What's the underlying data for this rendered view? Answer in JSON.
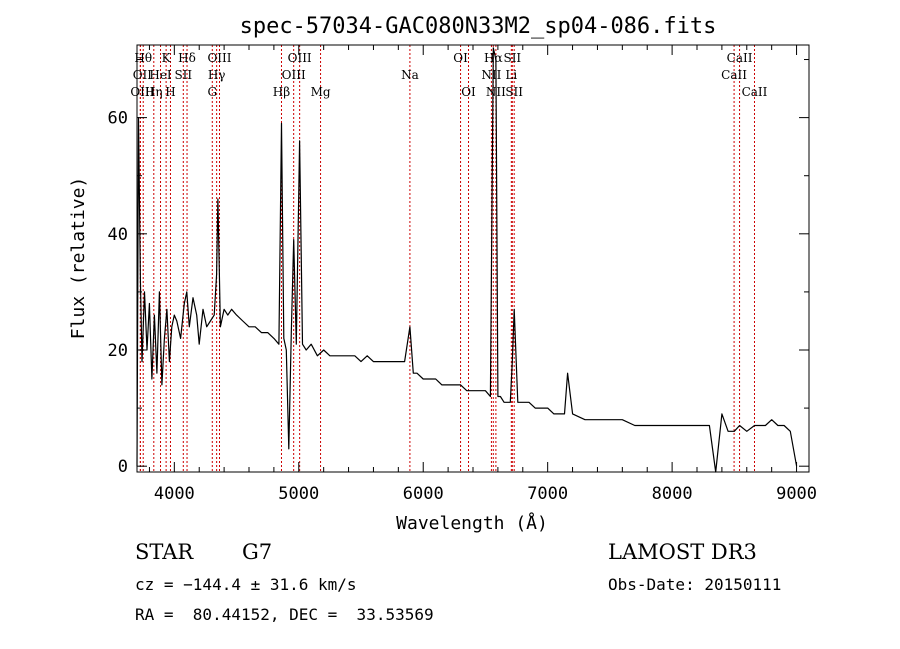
{
  "chart_data": {
    "type": "line",
    "title": "spec-57034-GAC080N33M2_sp04-086.fits",
    "xlabel": "Wavelength (Å)",
    "ylabel": "Flux (relative)",
    "xlim": [
      3700,
      9100
    ],
    "ylim": [
      -1,
      72.5
    ],
    "x_ticks": [
      4000,
      5000,
      6000,
      7000,
      8000,
      9000
    ],
    "y_ticks": [
      0,
      20,
      40,
      60
    ],
    "grid": false,
    "series": [
      {
        "x": [
          3700,
          3712,
          3727,
          3740,
          3760,
          3780,
          3800,
          3820,
          3840,
          3860,
          3880,
          3900,
          3920,
          3940,
          3960,
          3980,
          4000,
          4020,
          4050,
          4080,
          4100,
          4120,
          4150,
          4180,
          4200,
          4230,
          4260,
          4290,
          4320,
          4340,
          4350,
          4370,
          4400,
          4430,
          4460,
          4500,
          4550,
          4600,
          4650,
          4700,
          4750,
          4800,
          4840,
          4861,
          4880,
          4900,
          4920,
          4940,
          4959,
          4980,
          5007,
          5030,
          5060,
          5100,
          5150,
          5200,
          5250,
          5300,
          5350,
          5400,
          5450,
          5500,
          5550,
          5600,
          5650,
          5700,
          5750,
          5800,
          5850,
          5893,
          5920,
          5950,
          6000,
          6050,
          6100,
          6150,
          6200,
          6250,
          6300,
          6350,
          6400,
          6450,
          6500,
          6540,
          6563,
          6584,
          6600,
          6620,
          6650,
          6680,
          6700,
          6716,
          6731,
          6760,
          6800,
          6850,
          6900,
          6950,
          7000,
          7050,
          7100,
          7135,
          7160,
          7200,
          7300,
          7400,
          7500,
          7600,
          7700,
          7800,
          7900,
          8000,
          8100,
          8200,
          8300,
          8350,
          8400,
          8450,
          8500,
          8542,
          8600,
          8662,
          8700,
          8750,
          8800,
          8850,
          8900,
          8950,
          9000
        ],
        "y": [
          0,
          60,
          32,
          18,
          30,
          20,
          28,
          15,
          26,
          16,
          30,
          14,
          22,
          27,
          18,
          24,
          26,
          25,
          22,
          28,
          30,
          24,
          29,
          26,
          21,
          27,
          24,
          25,
          26,
          33,
          46,
          24,
          27,
          26,
          27,
          26,
          25,
          24,
          24,
          23,
          23,
          22,
          21,
          59,
          22,
          20,
          3,
          23,
          39,
          21,
          56,
          21,
          20,
          21,
          19,
          20,
          19,
          19,
          19,
          19,
          19,
          18,
          19,
          18,
          18,
          18,
          18,
          18,
          18,
          24,
          16,
          16,
          15,
          15,
          15,
          14,
          14,
          14,
          14,
          13,
          13,
          13,
          13,
          12,
          72,
          70,
          12,
          12,
          11,
          11,
          11,
          18,
          27,
          11,
          11,
          11,
          10,
          10,
          10,
          9,
          9,
          9,
          16,
          9,
          8,
          8,
          8,
          8,
          7,
          7,
          7,
          7,
          7,
          7,
          7,
          -1,
          9,
          6,
          6,
          7,
          6,
          7,
          7,
          7,
          8,
          7,
          7,
          6,
          0
        ]
      }
    ],
    "spectral_lines": [
      {
        "label": "Hθ",
        "wavelength": 3750,
        "row": 0,
        "dx": 0
      },
      {
        "label": "OII",
        "wavelength": 3727,
        "row": 1,
        "dx": 2
      },
      {
        "label": "OIII",
        "wavelength": 3727,
        "row": 2,
        "dx": 2
      },
      {
        "label": "Hη",
        "wavelength": 3835,
        "row": 2,
        "dx": 0
      },
      {
        "label": "K",
        "wavelength": 3934,
        "row": 0,
        "dx": 0
      },
      {
        "label": "HeI",
        "wavelength": 3889,
        "row": 1,
        "dx": 0
      },
      {
        "label": "H",
        "wavelength": 3969,
        "row": 2,
        "dx": 0
      },
      {
        "label": "SII",
        "wavelength": 4072,
        "row": 1,
        "dx": 0
      },
      {
        "label": "Hδ",
        "wavelength": 4102,
        "row": 0,
        "dx": 0
      },
      {
        "label": "OIII",
        "wavelength": 4363,
        "row": 0,
        "dx": 0
      },
      {
        "label": "Hγ",
        "wavelength": 4340,
        "row": 1,
        "dx": 0
      },
      {
        "label": "G",
        "wavelength": 4305,
        "row": 2,
        "dx": 0
      },
      {
        "label": "Hβ",
        "wavelength": 4861,
        "row": 2,
        "dx": 0
      },
      {
        "label": "OIII",
        "wavelength": 5007,
        "row": 0,
        "dx": 0
      },
      {
        "label": "OIII",
        "wavelength": 4959,
        "row": 1,
        "dx": 0
      },
      {
        "label": "Mg",
        "wavelength": 5175,
        "row": 2,
        "dx": 0
      },
      {
        "label": "Na",
        "wavelength": 5893,
        "row": 1,
        "dx": 0
      },
      {
        "label": "OI",
        "wavelength": 6300,
        "row": 0,
        "dx": 0
      },
      {
        "label": "OI",
        "wavelength": 6364,
        "row": 2,
        "dx": 0
      },
      {
        "label": "Hα",
        "wavelength": 6563,
        "row": 0,
        "dx": 0
      },
      {
        "label": "NII",
        "wavelength": 6548,
        "row": 1,
        "dx": 0
      },
      {
        "label": "NII",
        "wavelength": 6584,
        "row": 2,
        "dx": 0
      },
      {
        "label": "SII",
        "wavelength": 6716,
        "row": 0,
        "dx": 0
      },
      {
        "label": "Li",
        "wavelength": 6708,
        "row": 1,
        "dx": 0
      },
      {
        "label": "SII",
        "wavelength": 6731,
        "row": 2,
        "dx": 0
      },
      {
        "label": "CaII",
        "wavelength": 8542,
        "row": 0,
        "dx": 0
      },
      {
        "label": "CaII",
        "wavelength": 8498,
        "row": 1,
        "dx": 0
      },
      {
        "label": "CaII",
        "wavelength": 8662,
        "row": 2,
        "dx": 0
      }
    ],
    "line_color": "#000000",
    "marker_color": "#cc0000"
  },
  "info": {
    "object_type": "STAR",
    "subclass": "G7",
    "survey": "LAMOST DR3",
    "cz": "cz = −144.4 ± 31.6 km/s",
    "obs_date": "Obs-Date: 20150111",
    "radec": "RA =  80.44152, DEC =  33.53569"
  }
}
